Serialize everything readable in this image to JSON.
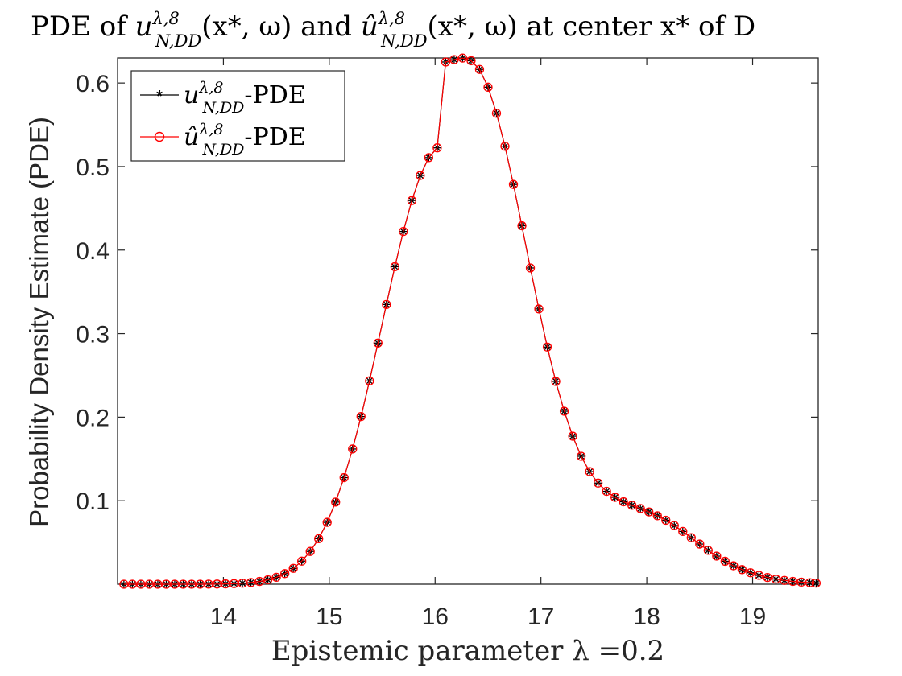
{
  "chart_data": {
    "type": "line",
    "title_parts": {
      "p1": "PDE of ",
      "u": "u",
      "sup": "λ,8",
      "sub": "N,DD",
      "args": "(x*, ω)",
      "and": " and ",
      "uhat": "û",
      "sup2": "λ,8",
      "sub2": "N,DD",
      "args2": "(x*, ω)",
      "tail": " at center x* of D"
    },
    "xlabel": "Epistemic parameter λ =0.2",
    "ylabel": "Probability Density Estimate (PDE)",
    "xlim": [
      13.0,
      19.62
    ],
    "ylim": [
      0,
      0.63
    ],
    "xticks": [
      14,
      15,
      16,
      17,
      18,
      19
    ],
    "xtick_labels": [
      "14",
      "15",
      "16",
      "17",
      "18",
      "19"
    ],
    "yticks": [
      0.1,
      0.2,
      0.3,
      0.4,
      0.5,
      0.6
    ],
    "ytick_labels": [
      "0.1",
      "0.2",
      "0.3",
      "0.4",
      "0.5",
      "0.6"
    ],
    "grid": false,
    "legend_position": "top-left",
    "legend": [
      {
        "base": "u",
        "sup": "λ,8",
        "sub": "N,DD",
        "suffix": "-PDE",
        "color": "#000000",
        "marker": "asterisk"
      },
      {
        "base": "û",
        "sup": "λ,8",
        "sub": "N,DD",
        "suffix": "-PDE",
        "color": "#ff0000",
        "marker": "circle"
      }
    ],
    "x": [
      13.06,
      13.14,
      13.22,
      13.3,
      13.38,
      13.46,
      13.54,
      13.62,
      13.7,
      13.78,
      13.86,
      13.94,
      14.02,
      14.1,
      14.18,
      14.26,
      14.34,
      14.42,
      14.5,
      14.58,
      14.66,
      14.74,
      14.82,
      14.9,
      14.98,
      15.06,
      15.14,
      15.22,
      15.3,
      15.38,
      15.46,
      15.54,
      15.62,
      15.7,
      15.78,
      15.86,
      15.94,
      16.02,
      16.1,
      16.18,
      16.26,
      16.34,
      16.42,
      16.5,
      16.58,
      16.66,
      16.74,
      16.82,
      16.9,
      16.98,
      17.06,
      17.14,
      17.22,
      17.3,
      17.38,
      17.46,
      17.54,
      17.62,
      17.7,
      17.78,
      17.86,
      17.94,
      18.02,
      18.1,
      18.18,
      18.26,
      18.34,
      18.42,
      18.5,
      18.58,
      18.66,
      18.74,
      18.82,
      18.9,
      18.98,
      19.06,
      19.14,
      19.22,
      19.3,
      19.38,
      19.46,
      19.54,
      19.6
    ],
    "series": [
      {
        "name": "u-PDE",
        "color": "#000000",
        "values": [
          0,
          0,
          0,
          0,
          0,
          0,
          0,
          0,
          0,
          0,
          0.0001,
          0.0002,
          0.0004,
          0.0007,
          0.0012,
          0.002,
          0.0033,
          0.0053,
          0.0083,
          0.0127,
          0.019,
          0.0277,
          0.0393,
          0.0546,
          0.0741,
          0.0984,
          0.1276,
          0.1619,
          0.2007,
          0.2434,
          0.2887,
          0.3349,
          0.3801,
          0.4223,
          0.4593,
          0.4893,
          0.5107,
          0.5224,
          0.6252,
          0.628,
          0.6299,
          0.6267,
          0.6163,
          0.595,
          0.5638,
          0.5243,
          0.4786,
          0.4291,
          0.3786,
          0.3296,
          0.2839,
          0.2428,
          0.2071,
          0.1772,
          0.1532,
          0.1348,
          0.1211,
          0.1112,
          0.104,
          0.0987,
          0.0945,
          0.0906,
          0.0866,
          0.082,
          0.0766,
          0.0703,
          0.0632,
          0.0557,
          0.0481,
          0.0406,
          0.0337,
          0.0275,
          0.0221,
          0.0175,
          0.0137,
          0.0106,
          0.0081,
          0.0061,
          0.0046,
          0.0034,
          0.0025,
          0.0018,
          0.0013
        ]
      },
      {
        "name": "û-PDE",
        "color": "#ff0000",
        "values": [
          0,
          0,
          0,
          0,
          0,
          0,
          0,
          0,
          0,
          0,
          0.0001,
          0.0002,
          0.0004,
          0.0007,
          0.0012,
          0.002,
          0.0033,
          0.0053,
          0.0083,
          0.0127,
          0.019,
          0.0277,
          0.0393,
          0.0546,
          0.0741,
          0.0984,
          0.1276,
          0.1619,
          0.2007,
          0.2434,
          0.2887,
          0.3349,
          0.3801,
          0.4223,
          0.4593,
          0.4893,
          0.5107,
          0.5224,
          0.6252,
          0.628,
          0.6299,
          0.6267,
          0.6163,
          0.595,
          0.5638,
          0.5243,
          0.4786,
          0.4291,
          0.3786,
          0.3296,
          0.2839,
          0.2428,
          0.2071,
          0.1772,
          0.1532,
          0.1348,
          0.1211,
          0.1112,
          0.104,
          0.0987,
          0.0945,
          0.0906,
          0.0866,
          0.082,
          0.0766,
          0.0703,
          0.0632,
          0.0557,
          0.0481,
          0.0406,
          0.0337,
          0.0275,
          0.0221,
          0.0175,
          0.0137,
          0.0106,
          0.0081,
          0.0061,
          0.0046,
          0.0034,
          0.0025,
          0.0018,
          0.0013
        ]
      }
    ]
  }
}
